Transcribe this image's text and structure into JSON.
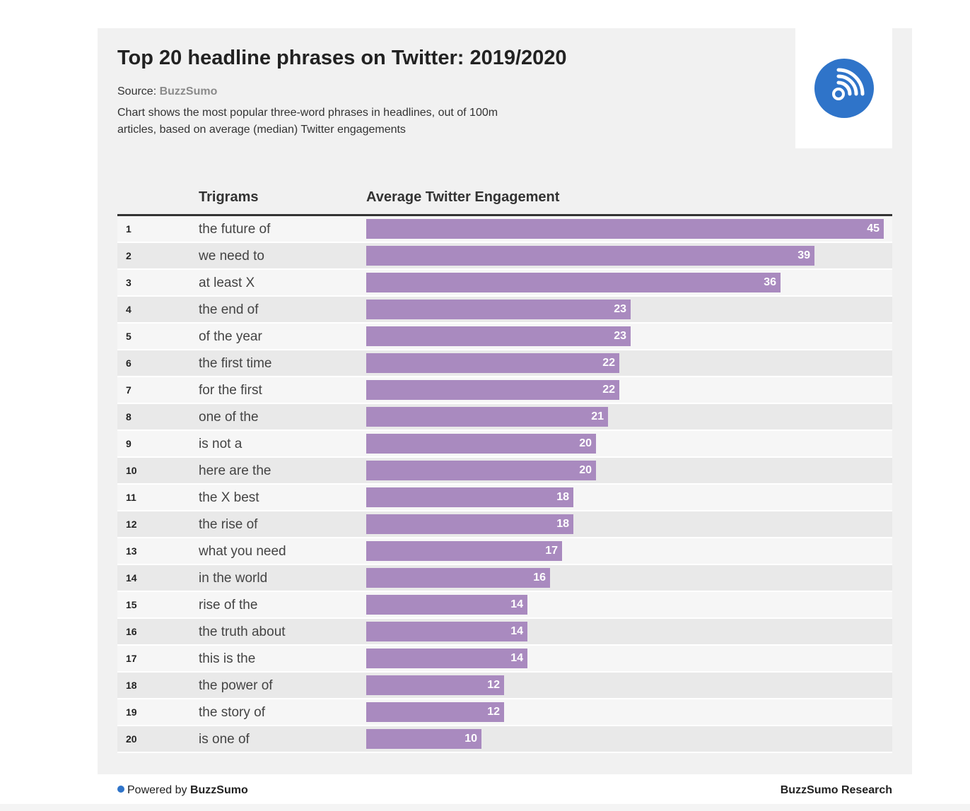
{
  "header": {
    "title": "Top 20 headline phrases on Twitter: 2019/2020",
    "source_label": "Source: ",
    "source_name": "BuzzSumo",
    "description": "Chart shows the most popular three-word phrases in headlines, out of 100m articles, based on average (median) Twitter engagements"
  },
  "logo": {
    "icon": "rss-feed-icon",
    "color": "#2f74c9"
  },
  "table": {
    "col_trigram": "Trigrams",
    "col_engagement": "Average Twitter Engagement"
  },
  "chart_data": {
    "type": "bar",
    "orientation": "horizontal",
    "title": "Top 20 headline phrases on Twitter: 2019/2020",
    "ylabel": "Trigrams",
    "xlabel": "Average Twitter Engagement",
    "bar_color": "#a98abf",
    "xlim": [
      0,
      45
    ],
    "rows": [
      {
        "rank": "1",
        "phrase": "the future of",
        "value": 45
      },
      {
        "rank": "2",
        "phrase": "we need to",
        "value": 39
      },
      {
        "rank": "3",
        "phrase": "at least X",
        "value": 36
      },
      {
        "rank": "4",
        "phrase": "the end of",
        "value": 23
      },
      {
        "rank": "5",
        "phrase": "of the year",
        "value": 23
      },
      {
        "rank": "6",
        "phrase": "the first time",
        "value": 22
      },
      {
        "rank": "7",
        "phrase": "for the first",
        "value": 22
      },
      {
        "rank": "8",
        "phrase": "one of the",
        "value": 21
      },
      {
        "rank": "9",
        "phrase": "is not a",
        "value": 20
      },
      {
        "rank": "10",
        "phrase": "here are the",
        "value": 20
      },
      {
        "rank": "11",
        "phrase": "the X best",
        "value": 18
      },
      {
        "rank": "12",
        "phrase": "the rise of",
        "value": 18
      },
      {
        "rank": "13",
        "phrase": "what you need",
        "value": 17
      },
      {
        "rank": "14",
        "phrase": "in the world",
        "value": 16
      },
      {
        "rank": "15",
        "phrase": "rise of the",
        "value": 14
      },
      {
        "rank": "16",
        "phrase": "the truth about",
        "value": 14
      },
      {
        "rank": "17",
        "phrase": "this is the",
        "value": 14
      },
      {
        "rank": "18",
        "phrase": "the power of",
        "value": 12
      },
      {
        "rank": "19",
        "phrase": "the story of",
        "value": 12
      },
      {
        "rank": "20",
        "phrase": "is one of",
        "value": 10
      }
    ]
  },
  "footer": {
    "powered_label": "Powered by ",
    "powered_brand": "BuzzSumo",
    "research_label": "BuzzSumo Research"
  }
}
